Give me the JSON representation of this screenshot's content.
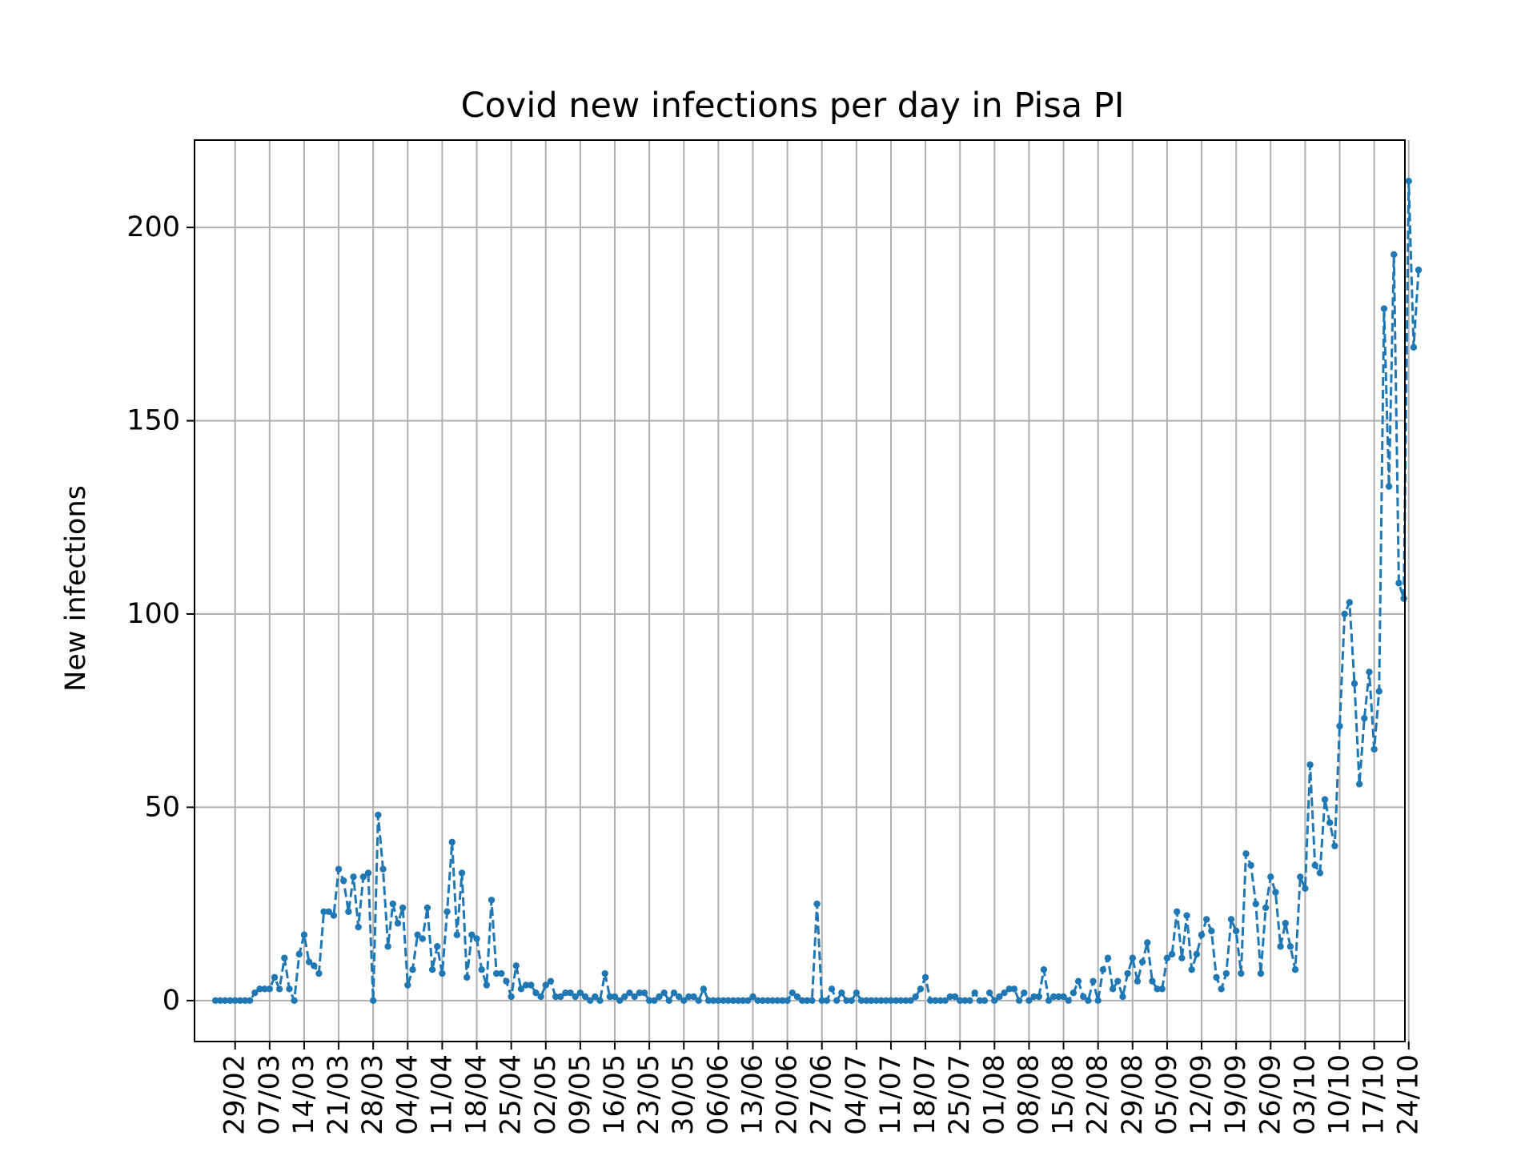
{
  "chart_data": {
    "type": "line",
    "title": "Covid new infections per day in Pisa PI",
    "xlabel": "",
    "ylabel": "New infections",
    "xlim": [
      -4.23,
      241.23
    ],
    "ylim": [
      -10.6,
      222.6
    ],
    "grid": true,
    "colors": {
      "line": "#1f77b4",
      "marker": "#1f77b4",
      "grid": "#b0b0b0",
      "frame": "#000000"
    },
    "y_ticks": [
      0,
      50,
      100,
      150,
      200
    ],
    "x_ticks": [
      {
        "x": 4,
        "label": "29/02"
      },
      {
        "x": 11,
        "label": "07/03"
      },
      {
        "x": 18,
        "label": "14/03"
      },
      {
        "x": 25,
        "label": "21/03"
      },
      {
        "x": 32,
        "label": "28/03"
      },
      {
        "x": 39,
        "label": "04/04"
      },
      {
        "x": 46,
        "label": "11/04"
      },
      {
        "x": 53,
        "label": "18/04"
      },
      {
        "x": 60,
        "label": "25/04"
      },
      {
        "x": 67,
        "label": "02/05"
      },
      {
        "x": 74,
        "label": "09/05"
      },
      {
        "x": 81,
        "label": "16/05"
      },
      {
        "x": 88,
        "label": "23/05"
      },
      {
        "x": 95,
        "label": "30/05"
      },
      {
        "x": 102,
        "label": "06/06"
      },
      {
        "x": 109,
        "label": "13/06"
      },
      {
        "x": 116,
        "label": "20/06"
      },
      {
        "x": 123,
        "label": "27/06"
      },
      {
        "x": 130,
        "label": "04/07"
      },
      {
        "x": 137,
        "label": "11/07"
      },
      {
        "x": 144,
        "label": "18/07"
      },
      {
        "x": 151,
        "label": "25/07"
      },
      {
        "x": 158,
        "label": "01/08"
      },
      {
        "x": 165,
        "label": "08/08"
      },
      {
        "x": 172,
        "label": "15/08"
      },
      {
        "x": 179,
        "label": "22/08"
      },
      {
        "x": 186,
        "label": "29/08"
      },
      {
        "x": 193,
        "label": "05/09"
      },
      {
        "x": 200,
        "label": "12/09"
      },
      {
        "x": 207,
        "label": "19/09"
      },
      {
        "x": 214,
        "label": "26/09"
      },
      {
        "x": 221,
        "label": "03/10"
      },
      {
        "x": 228,
        "label": "10/10"
      },
      {
        "x": 235,
        "label": "17/10"
      },
      {
        "x": 242,
        "label": "24/10"
      }
    ],
    "series": [
      {
        "values": [
          0,
          0,
          0,
          0,
          0,
          0,
          0,
          0,
          2,
          3,
          3,
          3,
          6,
          3,
          11,
          3,
          0,
          12,
          17,
          10,
          9,
          7,
          23,
          23,
          22,
          34,
          31,
          23,
          32,
          19,
          32,
          33,
          0,
          48,
          34,
          14,
          25,
          20,
          24,
          4,
          8,
          17,
          16,
          24,
          8,
          14,
          7,
          23,
          41,
          17,
          33,
          6,
          17,
          16,
          8,
          4,
          26,
          7,
          7,
          5,
          1,
          9,
          3,
          4,
          4,
          2,
          1,
          4,
          5,
          1,
          1,
          2,
          2,
          1,
          2,
          1,
          0,
          1,
          0,
          7,
          1,
          1,
          0,
          1,
          2,
          1,
          2,
          2,
          0,
          0,
          1,
          2,
          0,
          2,
          1,
          0,
          1,
          1,
          0,
          3,
          0,
          0,
          0,
          0,
          0,
          0,
          0,
          0,
          0,
          1,
          0,
          0,
          0,
          0,
          0,
          0,
          0,
          2,
          1,
          0,
          0,
          0,
          25,
          0,
          0,
          3,
          0,
          2,
          0,
          0,
          2,
          0,
          0,
          0,
          0,
          0,
          0,
          0,
          0,
          0,
          0,
          0,
          1,
          3,
          6,
          0,
          0,
          0,
          0,
          1,
          1,
          0,
          0,
          0,
          2,
          0,
          0,
          2,
          0,
          1,
          2,
          3,
          3,
          0,
          2,
          0,
          1,
          1,
          8,
          0,
          1,
          1,
          1,
          0,
          2,
          5,
          1,
          0,
          5,
          0,
          8,
          11,
          3,
          5,
          1,
          7,
          11,
          5,
          10,
          15,
          5,
          3,
          3,
          11,
          12,
          23,
          11,
          22,
          8,
          12,
          17,
          21,
          18,
          6,
          3,
          7,
          21,
          18,
          7,
          38,
          35,
          25,
          7,
          24,
          32,
          28,
          14,
          20,
          14,
          8,
          32,
          29,
          61,
          35,
          33,
          52,
          46,
          40,
          71,
          100,
          103,
          82,
          56,
          73,
          85,
          65,
          80,
          179,
          133,
          193,
          108,
          104,
          212,
          169,
          189
        ]
      }
    ]
  }
}
